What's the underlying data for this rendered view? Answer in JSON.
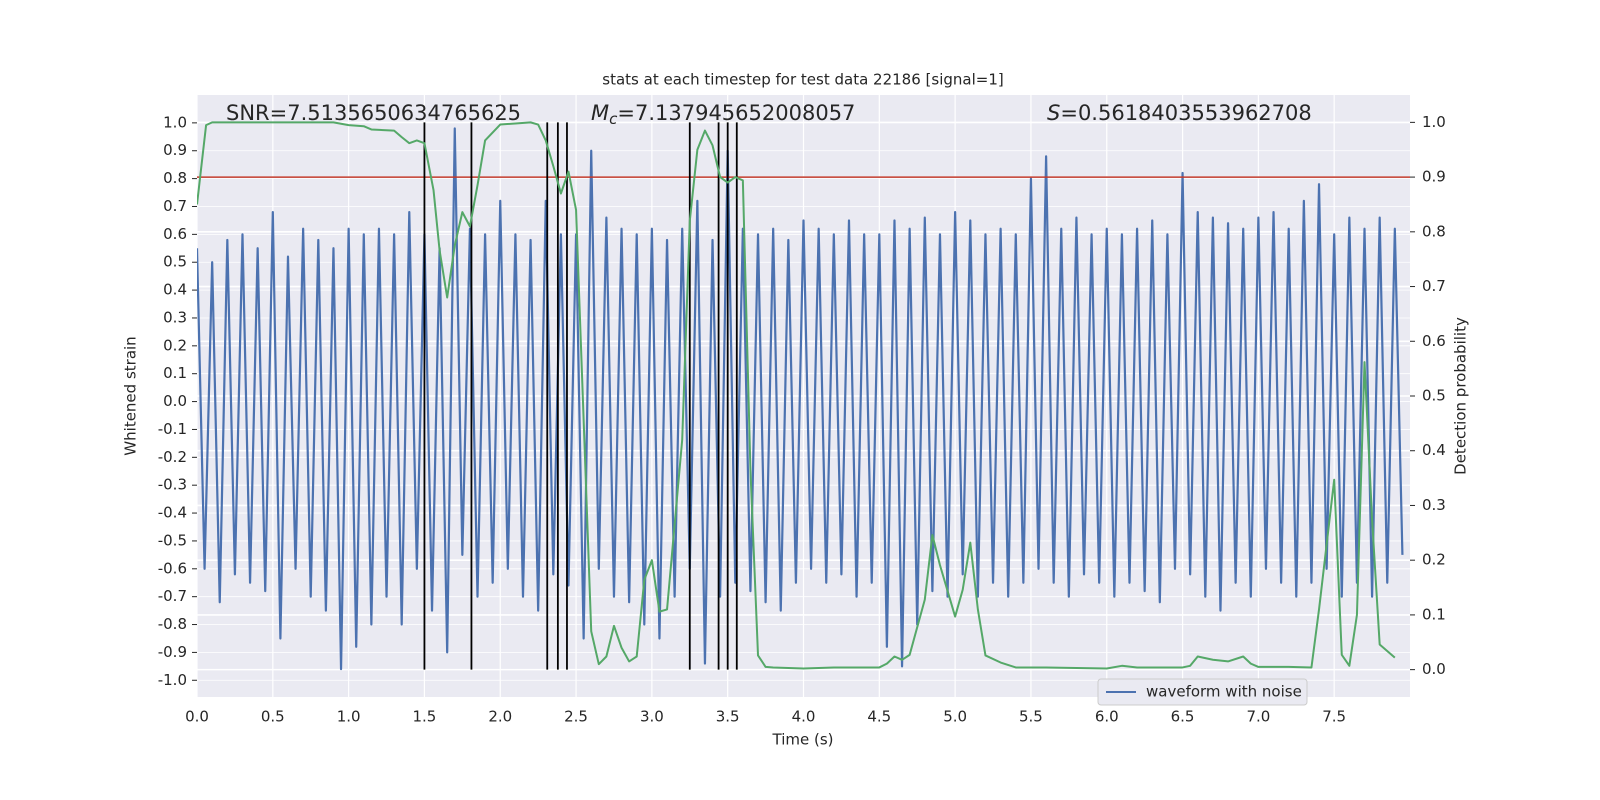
{
  "chart_data": {
    "type": "line",
    "title": "stats at each timestep for test data 22186 [signal=1]",
    "xlabel": "Time (s)",
    "ylabel": "Whitened strain",
    "y2label": "Detection probability",
    "xlim": [
      0,
      8
    ],
    "ylim": [
      -1.06,
      1.1
    ],
    "y2lim": [
      -0.05,
      1.05
    ],
    "xticks": [
      {
        "value": 0,
        "label": "0.0"
      },
      0.5,
      {
        "value": 1,
        "label": "1.0"
      },
      1.5,
      {
        "value": 2,
        "label": "2.0"
      },
      2.5,
      {
        "value": 3,
        "label": "3.0"
      },
      3.5,
      {
        "value": 4,
        "label": "4.0"
      },
      4.5,
      {
        "value": 5,
        "label": "5.0"
      },
      5.5,
      {
        "value": 6,
        "label": "6.0"
      },
      6.5,
      {
        "value": 7,
        "label": "7.0"
      },
      7.5
    ],
    "yticks": [
      {
        "value": -1,
        "label": "-1.0"
      },
      -0.9,
      -0.8,
      -0.7,
      -0.6,
      -0.5,
      -0.4,
      -0.3,
      -0.2,
      -0.1,
      {
        "value": 0,
        "label": "0.0"
      },
      0.1,
      0.2,
      0.3,
      0.4,
      0.5,
      0.6,
      0.7,
      0.8,
      0.9,
      {
        "value": 1,
        "label": "1.0"
      }
    ],
    "y2ticks": [
      {
        "value": 0,
        "label": "0.0"
      },
      0.1,
      0.2,
      0.3,
      0.4,
      0.5,
      0.6,
      0.7,
      0.8,
      0.9,
      {
        "value": 1,
        "label": "1.0"
      }
    ],
    "grid": true,
    "legend": "lower right",
    "series": [
      {
        "name": "waveform with noise",
        "color": "#4c72b0",
        "x": [
          0,
          0.05,
          0.1,
          0.15,
          0.2,
          0.25,
          0.3,
          0.35,
          0.4,
          0.45,
          0.5,
          0.55,
          0.6,
          0.65,
          0.7,
          0.75,
          0.8,
          0.85,
          0.9,
          0.95,
          1,
          1.05,
          1.1,
          1.15,
          1.2,
          1.25,
          1.3,
          1.35,
          1.4,
          1.45,
          1.5,
          1.55,
          1.6,
          1.65,
          1.7,
          1.75,
          1.8,
          1.85,
          1.9,
          1.95,
          2,
          2.05,
          2.1,
          2.15,
          2.2,
          2.25,
          2.3,
          2.35,
          2.4,
          2.45,
          2.5,
          2.55,
          2.6,
          2.65,
          2.7,
          2.75,
          2.8,
          2.85,
          2.9,
          2.95,
          3,
          3.05,
          3.1,
          3.15,
          3.2,
          3.25,
          3.3,
          3.35,
          3.4,
          3.45,
          3.5,
          3.55,
          3.6,
          3.65,
          3.7,
          3.75,
          3.8,
          3.85,
          3.9,
          3.95,
          4,
          4.05,
          4.1,
          4.15,
          4.2,
          4.25,
          4.3,
          4.35,
          4.4,
          4.45,
          4.5,
          4.55,
          4.6,
          4.65,
          4.7,
          4.75,
          4.8,
          4.85,
          4.9,
          4.95,
          5,
          5.05,
          5.1,
          5.15,
          5.2,
          5.25,
          5.3,
          5.35,
          5.4,
          5.45,
          5.5,
          5.55,
          5.6,
          5.65,
          5.7,
          5.75,
          5.8,
          5.85,
          5.9,
          5.95,
          6,
          6.05,
          6.1,
          6.15,
          6.2,
          6.25,
          6.3,
          6.35,
          6.4,
          6.45,
          6.5,
          6.55,
          6.6,
          6.65,
          6.7,
          6.75,
          6.8,
          6.85,
          6.9,
          6.95,
          7,
          7.05,
          7.1,
          7.15,
          7.2,
          7.25,
          7.3,
          7.35,
          7.4,
          7.45,
          7.5,
          7.55,
          7.6,
          7.65,
          7.7,
          7.75,
          7.8,
          7.85,
          7.9,
          7.95
        ],
        "values": [
          0.55,
          -0.6,
          0.5,
          -0.72,
          0.58,
          -0.62,
          0.6,
          -0.65,
          0.55,
          -0.68,
          0.68,
          -0.85,
          0.52,
          -0.6,
          0.62,
          -0.7,
          0.58,
          -0.75,
          0.55,
          -0.96,
          0.62,
          -0.88,
          0.6,
          -0.8,
          0.62,
          -0.7,
          0.6,
          -0.8,
          0.68,
          -0.6,
          0.6,
          -0.75,
          0.55,
          -0.9,
          0.98,
          -0.55,
          0.62,
          -0.7,
          0.6,
          -0.65,
          0.72,
          -0.6,
          0.6,
          -0.7,
          0.58,
          -0.75,
          0.72,
          -0.62,
          0.6,
          -0.66,
          0.6,
          -0.85,
          0.9,
          -0.6,
          0.66,
          -0.7,
          0.62,
          -0.72,
          0.6,
          -0.8,
          0.62,
          -0.85,
          0.58,
          -0.7,
          0.62,
          -0.6,
          0.72,
          -0.94,
          0.58,
          -0.7,
          0.9,
          -0.65,
          0.62,
          -0.68,
          0.6,
          -0.72,
          0.62,
          -0.75,
          0.58,
          -0.65,
          0.65,
          -0.6,
          0.62,
          -0.65,
          0.6,
          -0.62,
          0.65,
          -0.7,
          0.6,
          -0.65,
          0.6,
          -0.88,
          0.65,
          -0.95,
          0.62,
          -0.8,
          0.66,
          -0.68,
          0.6,
          -0.7,
          0.68,
          -0.62,
          0.65,
          -0.7,
          0.6,
          -0.65,
          0.62,
          -0.7,
          0.6,
          -0.65,
          0.8,
          -0.6,
          0.88,
          -0.65,
          0.62,
          -0.7,
          0.66,
          -0.62,
          0.6,
          -0.65,
          0.62,
          -0.7,
          0.6,
          -0.65,
          0.62,
          -0.68,
          0.65,
          -0.72,
          0.6,
          -0.6,
          0.82,
          -0.62,
          0.68,
          -0.7,
          0.66,
          -0.75,
          0.64,
          -0.65,
          0.62,
          -0.7,
          0.66,
          -0.6,
          0.68,
          -0.65,
          0.62,
          -0.7,
          0.72,
          -0.65,
          0.78,
          -0.6,
          0.6,
          -0.7,
          0.66,
          -0.65,
          0.62,
          -0.7,
          0.66,
          -0.65,
          0.62,
          -0.55
        ]
      },
      {
        "color": "#55a868",
        "axis": "y2",
        "x": [
          0,
          0.06,
          0.1,
          0.5,
          0.9,
          1.0,
          1.1,
          1.15,
          1.3,
          1.35,
          1.4,
          1.45,
          1.5,
          1.56,
          1.6,
          1.65,
          1.7,
          1.75,
          1.8,
          1.85,
          1.9,
          2.0,
          2.1,
          2.2,
          2.25,
          2.3,
          2.35,
          2.4,
          2.45,
          2.5,
          2.55,
          2.6,
          2.65,
          2.7,
          2.75,
          2.8,
          2.85,
          2.9,
          2.95,
          3.0,
          3.05,
          3.1,
          3.2,
          3.25,
          3.3,
          3.35,
          3.4,
          3.45,
          3.5,
          3.55,
          3.6,
          3.65,
          3.7,
          3.75,
          3.8,
          4.0,
          4.2,
          4.4,
          4.5,
          4.55,
          4.6,
          4.65,
          4.7,
          4.8,
          4.85,
          4.9,
          5.0,
          5.05,
          5.1,
          5.15,
          5.2,
          5.3,
          5.4,
          5.6,
          6.0,
          6.1,
          6.2,
          6.5,
          6.55,
          6.6,
          6.7,
          6.8,
          6.9,
          6.95,
          7.0,
          7.2,
          7.35,
          7.4,
          7.5,
          7.55,
          7.6,
          7.65,
          7.7,
          7.75,
          7.8,
          7.9
        ],
        "values": [
          0.85,
          0.995,
          1.0,
          1.0,
          1.0,
          0.995,
          0.993,
          0.987,
          0.985,
          0.973,
          0.962,
          0.967,
          0.962,
          0.876,
          0.766,
          0.68,
          0.775,
          0.836,
          0.81,
          0.885,
          0.967,
          0.996,
          0.998,
          1.0,
          0.996,
          0.967,
          0.92,
          0.87,
          0.91,
          0.84,
          0.456,
          0.07,
          0.01,
          0.024,
          0.08,
          0.04,
          0.015,
          0.024,
          0.164,
          0.2,
          0.106,
          0.11,
          0.42,
          0.82,
          0.95,
          0.985,
          0.958,
          0.9,
          0.89,
          0.9,
          0.894,
          0.365,
          0.026,
          0.005,
          0.004,
          0.002,
          0.004,
          0.004,
          0.004,
          0.011,
          0.024,
          0.018,
          0.027,
          0.128,
          0.246,
          0.191,
          0.097,
          0.146,
          0.232,
          0.11,
          0.026,
          0.013,
          0.004,
          0.004,
          0.002,
          0.007,
          0.004,
          0.004,
          0.007,
          0.024,
          0.018,
          0.015,
          0.024,
          0.011,
          0.005,
          0.005,
          0.004,
          0.11,
          0.347,
          0.027,
          0.007,
          0.1,
          0.562,
          0.274,
          0.046,
          0.022
        ]
      }
    ],
    "hline": {
      "y2": 0.9,
      "color": "#c0392b"
    },
    "vlines": {
      "x": [
        1.5,
        1.81,
        2.31,
        2.38,
        2.44,
        3.25,
        3.44,
        3.5,
        3.56
      ],
      "ymin": 0,
      "ymax": 1,
      "color": "#000000"
    },
    "annotations": [
      {
        "text": "SNR=7.5135650634765625"
      },
      {
        "symbol": "M",
        "subscript": "c",
        "text": "=7.137945652008057"
      },
      {
        "symbol": "S",
        "text": "=0.5618403553962708"
      }
    ]
  }
}
